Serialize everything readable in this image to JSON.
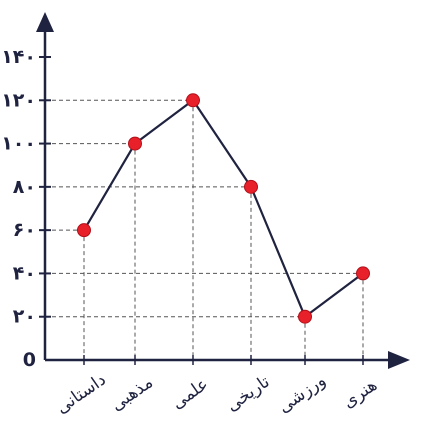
{
  "chart_data": {
    "type": "line",
    "title": "",
    "xlabel": "",
    "ylabel": "",
    "categories": [
      "داستانی",
      "مذهبی",
      "علمی",
      "تاریخی",
      "ورزشی",
      "هنری"
    ],
    "series": [
      {
        "values": [
          60,
          100,
          120,
          80,
          20,
          40
        ]
      }
    ],
    "ylim": [
      0,
      140
    ],
    "yticks": [
      {
        "value": 0,
        "label": "0"
      },
      {
        "value": 20,
        "label": "۲۰"
      },
      {
        "value": 40,
        "label": "۴۰"
      },
      {
        "value": 60,
        "label": "۶۰"
      },
      {
        "value": 80,
        "label": "۸۰"
      },
      {
        "value": 100,
        "label": "۱۰۰"
      },
      {
        "value": 120,
        "label": "۱۲۰"
      },
      {
        "value": 140,
        "label": "۱۴۰"
      }
    ],
    "grid": false,
    "guide_lines": "dashed",
    "legend": "none",
    "colors": {
      "line": "#1f2340",
      "marker": "#e8202a",
      "axis": "#1f2340",
      "guide": "#555555"
    }
  }
}
